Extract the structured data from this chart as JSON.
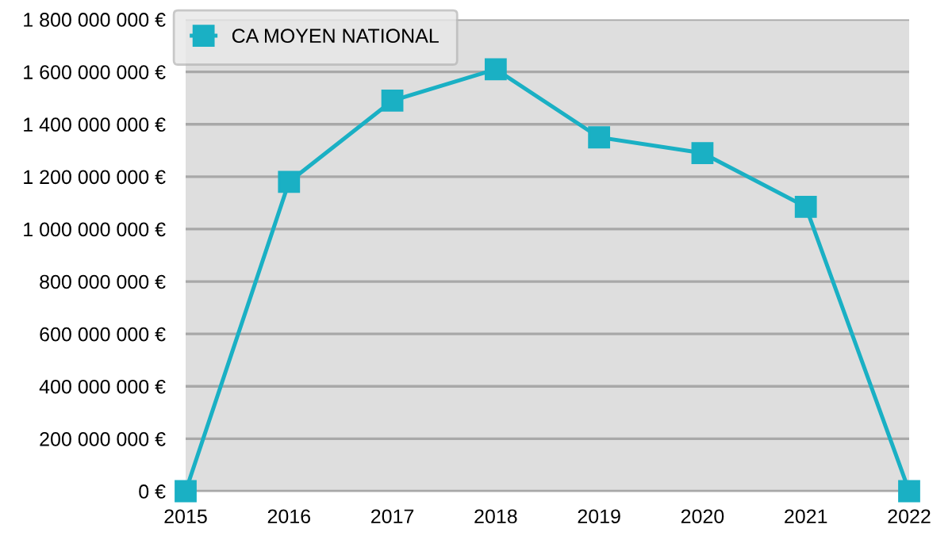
{
  "chart_data": {
    "type": "line",
    "categories": [
      "2015",
      "2016",
      "2017",
      "2018",
      "2019",
      "2020",
      "2021",
      "2022"
    ],
    "series": [
      {
        "name": "CA MOYEN NATIONAL",
        "color": "#1ab0c4",
        "values": [
          0,
          1180000000,
          1490000000,
          1610000000,
          1350000000,
          1290000000,
          1085000000,
          0
        ]
      }
    ],
    "ylim": [
      0,
      1800000000
    ],
    "yticks": [
      {
        "value": 0,
        "label": "0 €"
      },
      {
        "value": 200000000,
        "label": "200 000 000 €"
      },
      {
        "value": 400000000,
        "label": "400 000 000 €"
      },
      {
        "value": 600000000,
        "label": "600 000 000 €"
      },
      {
        "value": 800000000,
        "label": "800 000 000 €"
      },
      {
        "value": 1000000000,
        "label": "1 000 000 000 €"
      },
      {
        "value": 1200000000,
        "label": "1 200 000 000 €"
      },
      {
        "value": 1400000000,
        "label": "1 400 000 000 €"
      },
      {
        "value": 1600000000,
        "label": "1 600 000 000 €"
      },
      {
        "value": 1800000000,
        "label": "1 800 000 000 €"
      }
    ],
    "grid": "y",
    "legend": "top left",
    "marker": "square",
    "line_style": "solid"
  }
}
